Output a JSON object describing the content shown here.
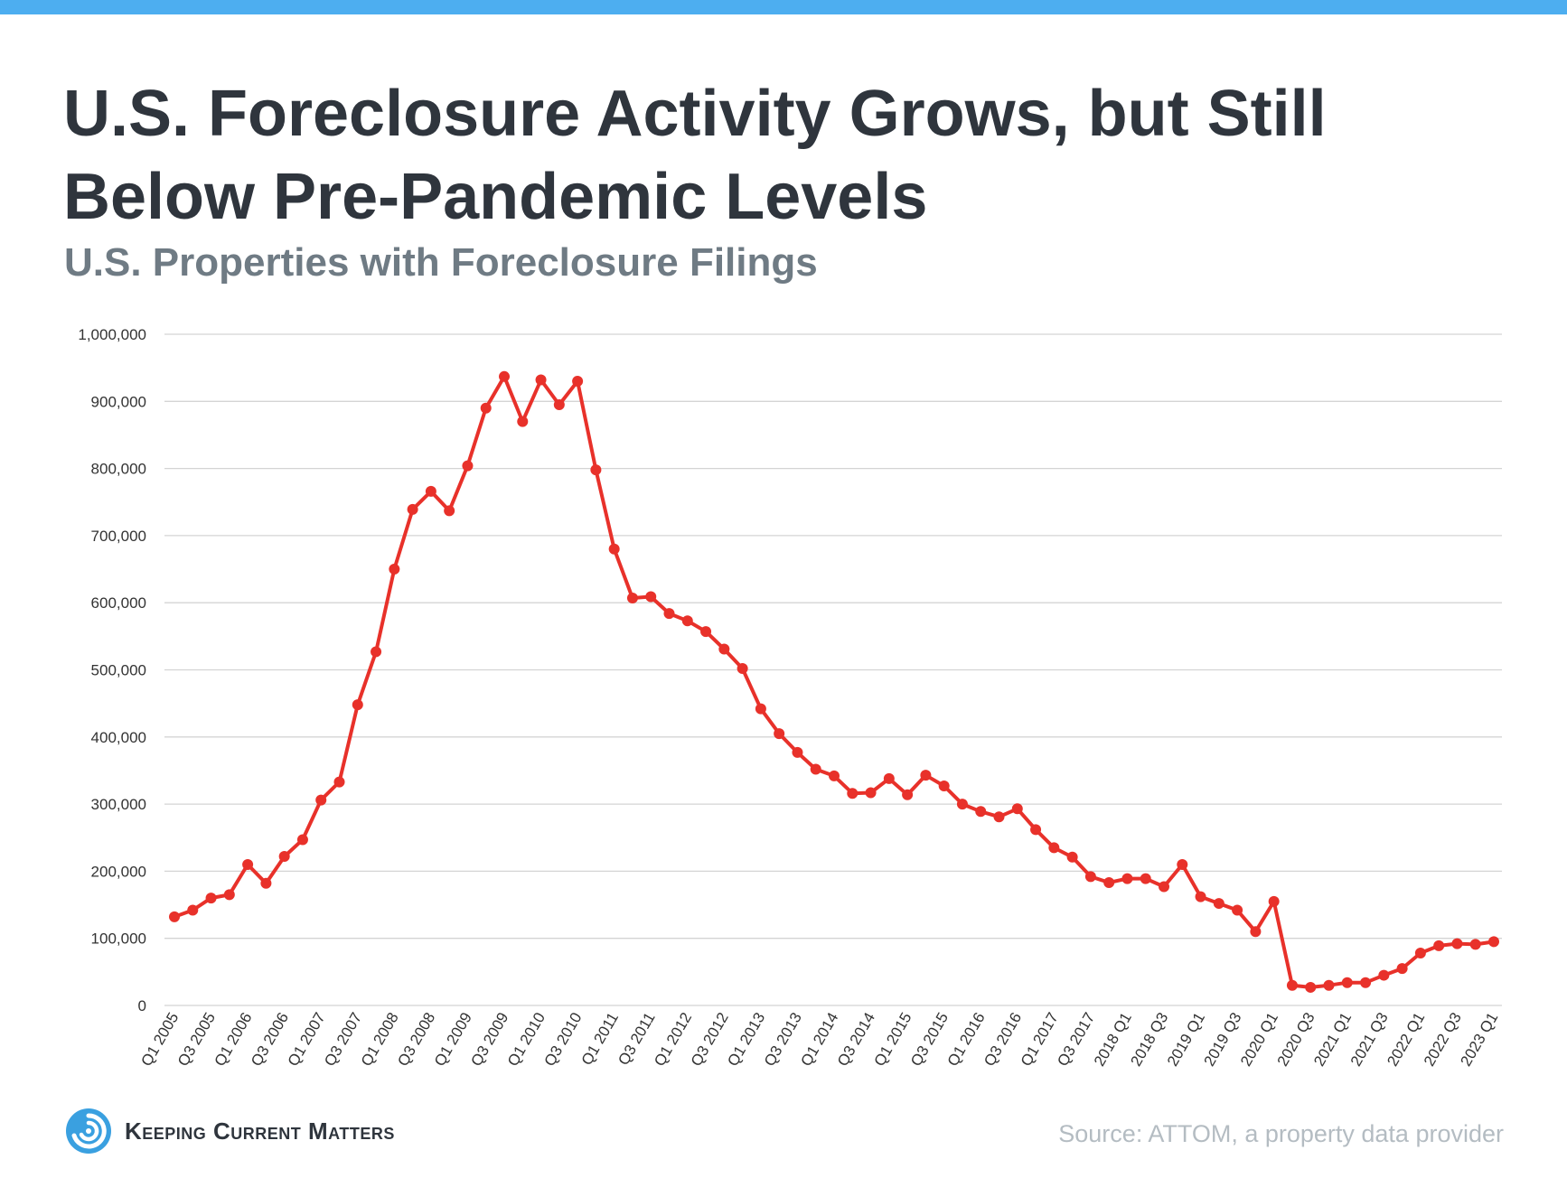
{
  "header": {
    "title": "U.S. Foreclosure Activity Grows, but Still Below Pre-Pandemic Levels",
    "subtitle": "U.S. Properties with Foreclosure Filings"
  },
  "footer": {
    "logo_text": "Keeping Current Matters",
    "source": "Source: ATTOM, a property data provider"
  },
  "colors": {
    "line": "#e8312a",
    "grid": "#d4d4d4",
    "title": "#2f353d",
    "subtitle": "#6f7b84",
    "top_bar": "#4daef0",
    "logo_blue": "#3aa0e0"
  },
  "chart_data": {
    "type": "line",
    "title": "",
    "xlabel": "",
    "ylabel": "",
    "ylim": [
      0,
      1000000
    ],
    "y_ticks": [
      0,
      100000,
      200000,
      300000,
      400000,
      500000,
      600000,
      700000,
      800000,
      900000,
      1000000
    ],
    "y_tick_labels": [
      "0",
      "100,000",
      "200,000",
      "300,000",
      "400,000",
      "500,000",
      "600,000",
      "700,000",
      "800,000",
      "900,000",
      "1,000,000"
    ],
    "grid": true,
    "legend": "none",
    "x_tick_labels": [
      "Q1 2005",
      "Q3 2005",
      "Q1 2006",
      "Q3 2006",
      "Q1 2007",
      "Q3 2007",
      "Q1 2008",
      "Q3 2008",
      "Q1 2009",
      "Q3 2009",
      "Q1 2010",
      "Q3 2010",
      "Q1 2011",
      "Q3 2011",
      "Q1 2012",
      "Q3 2012",
      "Q1 2013",
      "Q3 2013",
      "Q1 2014",
      "Q3 2014",
      "Q1 2015",
      "Q3 2015",
      "Q1 2016",
      "Q3 2016",
      "Q1 2017",
      "Q3 2017",
      "2018 Q1",
      "2018 Q3",
      "2019 Q1",
      "2019 Q3",
      "2020 Q1",
      "2020 Q3",
      "2021 Q1",
      "2021 Q3",
      "2022 Q1",
      "2022 Q3",
      "2023 Q1"
    ],
    "series": [
      {
        "values": [
          132000,
          142000,
          160000,
          165000,
          210000,
          182000,
          222000,
          247000,
          306000,
          333000,
          448000,
          527000,
          650000,
          739000,
          766000,
          737000,
          804000,
          890000,
          937000,
          870000,
          932000,
          895000,
          930000,
          798000,
          680000,
          607000,
          609000,
          584000,
          573000,
          557000,
          531000,
          502000,
          442000,
          405000,
          377000,
          352000,
          342000,
          316000,
          317000,
          338000,
          314000,
          343000,
          327000,
          300000,
          289000,
          281000,
          293000,
          262000,
          235000,
          221000,
          192000,
          183000,
          189000,
          189000,
          177000,
          210000,
          162000,
          152000,
          142000,
          110000,
          155000,
          30000,
          27000,
          30000,
          34000,
          34000,
          45000,
          55000,
          78000,
          89000,
          92000,
          91000,
          95000
        ]
      }
    ]
  }
}
